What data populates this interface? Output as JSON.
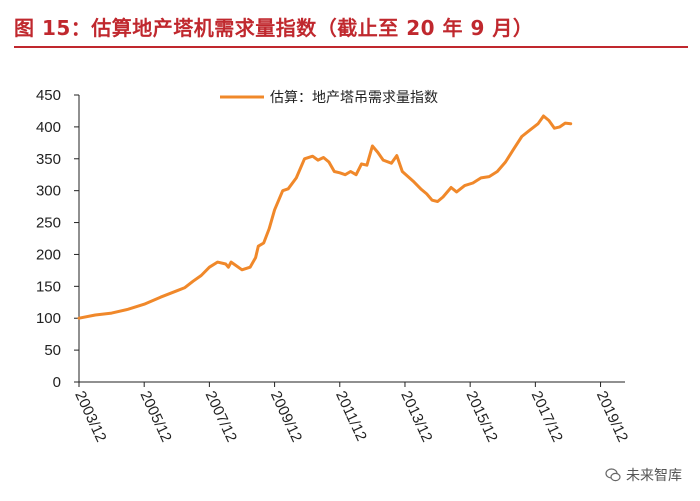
{
  "figure": {
    "title": "图 15：估算地产塔机需求量指数（截止至 20 年 9 月）",
    "watermark": "未来智库"
  },
  "colors": {
    "title": "#c0282e",
    "series": "#f0882a",
    "axis": "#222222"
  },
  "chart_data": {
    "type": "line",
    "title": "",
    "xlabel": "",
    "ylabel": "",
    "ylim": [
      0,
      450
    ],
    "yticks": [
      0,
      50,
      100,
      150,
      200,
      250,
      300,
      350,
      400,
      450
    ],
    "xlim": [
      "2003-12",
      "2020-09"
    ],
    "xticks": [
      "2003/12",
      "2005/12",
      "2007/12",
      "2009/12",
      "2011/12",
      "2013/12",
      "2015/12",
      "2017/12",
      "2019/12"
    ],
    "grid": false,
    "legend": "top-center",
    "series": [
      {
        "name": "估算：地产塔吊需求量指数",
        "points": [
          [
            "2003-12",
            100
          ],
          [
            "2004-06",
            105
          ],
          [
            "2004-12",
            108
          ],
          [
            "2005-06",
            114
          ],
          [
            "2005-12",
            122
          ],
          [
            "2006-06",
            133
          ],
          [
            "2006-12",
            143
          ],
          [
            "2007-03",
            148
          ],
          [
            "2007-06",
            158
          ],
          [
            "2007-09",
            167
          ],
          [
            "2007-12",
            180
          ],
          [
            "2008-03",
            188
          ],
          [
            "2008-06",
            185
          ],
          [
            "2008-07",
            180
          ],
          [
            "2008-08",
            188
          ],
          [
            "2008-09",
            185
          ],
          [
            "2008-12",
            176
          ],
          [
            "2009-03",
            180
          ],
          [
            "2009-05",
            195
          ],
          [
            "2009-06",
            213
          ],
          [
            "2009-08",
            218
          ],
          [
            "2009-10",
            240
          ],
          [
            "2009-12",
            270
          ],
          [
            "2010-03",
            300
          ],
          [
            "2010-05",
            303
          ],
          [
            "2010-08",
            320
          ],
          [
            "2010-11",
            350
          ],
          [
            "2011-02",
            354
          ],
          [
            "2011-04",
            348
          ],
          [
            "2011-06",
            352
          ],
          [
            "2011-08",
            345
          ],
          [
            "2011-10",
            330
          ],
          [
            "2011-12",
            328
          ],
          [
            "2012-02",
            325
          ],
          [
            "2012-04",
            330
          ],
          [
            "2012-06",
            325
          ],
          [
            "2012-08",
            342
          ],
          [
            "2012-10",
            340
          ],
          [
            "2012-12",
            370
          ],
          [
            "2013-02",
            360
          ],
          [
            "2013-04",
            348
          ],
          [
            "2013-07",
            343
          ],
          [
            "2013-09",
            355
          ],
          [
            "2013-11",
            330
          ],
          [
            "2014-03",
            315
          ],
          [
            "2014-06",
            302
          ],
          [
            "2014-08",
            295
          ],
          [
            "2014-10",
            285
          ],
          [
            "2014-12",
            283
          ],
          [
            "2015-02",
            290
          ],
          [
            "2015-05",
            305
          ],
          [
            "2015-07",
            298
          ],
          [
            "2015-10",
            308
          ],
          [
            "2016-01",
            312
          ],
          [
            "2016-04",
            320
          ],
          [
            "2016-07",
            322
          ],
          [
            "2016-10",
            330
          ],
          [
            "2017-01",
            345
          ],
          [
            "2017-04",
            365
          ],
          [
            "2017-07",
            385
          ],
          [
            "2017-10",
            395
          ],
          [
            "2018-01",
            405
          ],
          [
            "2018-03",
            417
          ],
          [
            "2018-05",
            410
          ],
          [
            "2018-07",
            398
          ],
          [
            "2018-09",
            400
          ],
          [
            "2018-11",
            406
          ],
          [
            "2019-01",
            405
          ]
        ]
      }
    ]
  }
}
